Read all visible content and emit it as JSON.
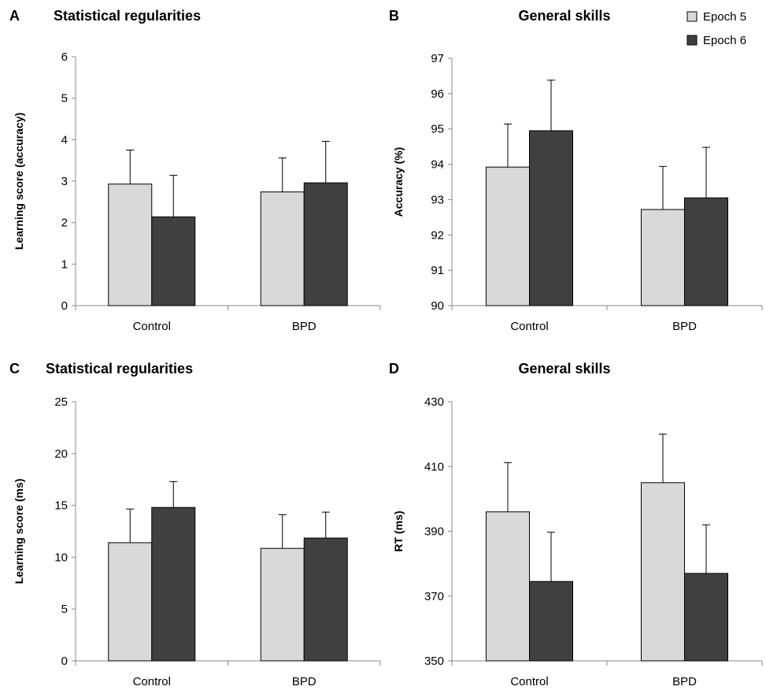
{
  "legend": {
    "entries": [
      {
        "label": "Epoch 5",
        "color": "#d9d9d9"
      },
      {
        "label": "Epoch 6",
        "color": "#404040"
      }
    ],
    "placement": "top-right"
  },
  "chart_data": [
    {
      "panel": "A",
      "type": "bar",
      "title": "Statistical regularities",
      "xlabel": "",
      "ylabel": "Learning score (accuracy)",
      "categories": [
        "Control",
        "BPD"
      ],
      "ylim": [
        0,
        6
      ],
      "yticks": [
        0,
        1,
        2,
        3,
        4,
        5,
        6
      ],
      "series": [
        {
          "name": "Epoch 5",
          "values": [
            2.93,
            2.74
          ],
          "errors": [
            0.82,
            0.82
          ]
        },
        {
          "name": "Epoch 6",
          "values": [
            2.14,
            2.96
          ],
          "errors": [
            1.0,
            1.0
          ]
        }
      ]
    },
    {
      "panel": "B",
      "type": "bar",
      "title": "General skills",
      "xlabel": "",
      "ylabel": "Accuracy (%)",
      "categories": [
        "Control",
        "BPD"
      ],
      "ylim": [
        90,
        97
      ],
      "yticks": [
        90,
        91,
        92,
        93,
        94,
        95,
        96,
        97
      ],
      "series": [
        {
          "name": "Epoch 5",
          "values": [
            93.92,
            92.72
          ],
          "errors": [
            1.22,
            1.22
          ]
        },
        {
          "name": "Epoch 6",
          "values": [
            94.95,
            93.05
          ],
          "errors": [
            1.43,
            1.43
          ]
        }
      ]
    },
    {
      "panel": "C",
      "type": "bar",
      "title": "Statistical regularities",
      "xlabel": "",
      "ylabel": "Learning score (ms)",
      "categories": [
        "Control",
        "BPD"
      ],
      "ylim": [
        0,
        25
      ],
      "yticks": [
        0,
        5,
        10,
        15,
        20,
        25
      ],
      "series": [
        {
          "name": "Epoch 5",
          "values": [
            11.4,
            10.85
          ],
          "errors": [
            3.25,
            3.25
          ]
        },
        {
          "name": "Epoch 6",
          "values": [
            14.8,
            11.85
          ],
          "errors": [
            2.5,
            2.5
          ]
        }
      ]
    },
    {
      "panel": "D",
      "type": "bar",
      "title": "General skills",
      "xlabel": "",
      "ylabel": "RT (ms)",
      "categories": [
        "Control",
        "BPD"
      ],
      "ylim": [
        350,
        430
      ],
      "yticks": [
        350,
        370,
        390,
        410,
        430
      ],
      "series": [
        {
          "name": "Epoch 5",
          "values": [
            396,
            405
          ],
          "errors": [
            15.2,
            15.0
          ]
        },
        {
          "name": "Epoch 6",
          "values": [
            374.5,
            377
          ],
          "errors": [
            15.2,
            15.0
          ]
        }
      ]
    }
  ]
}
